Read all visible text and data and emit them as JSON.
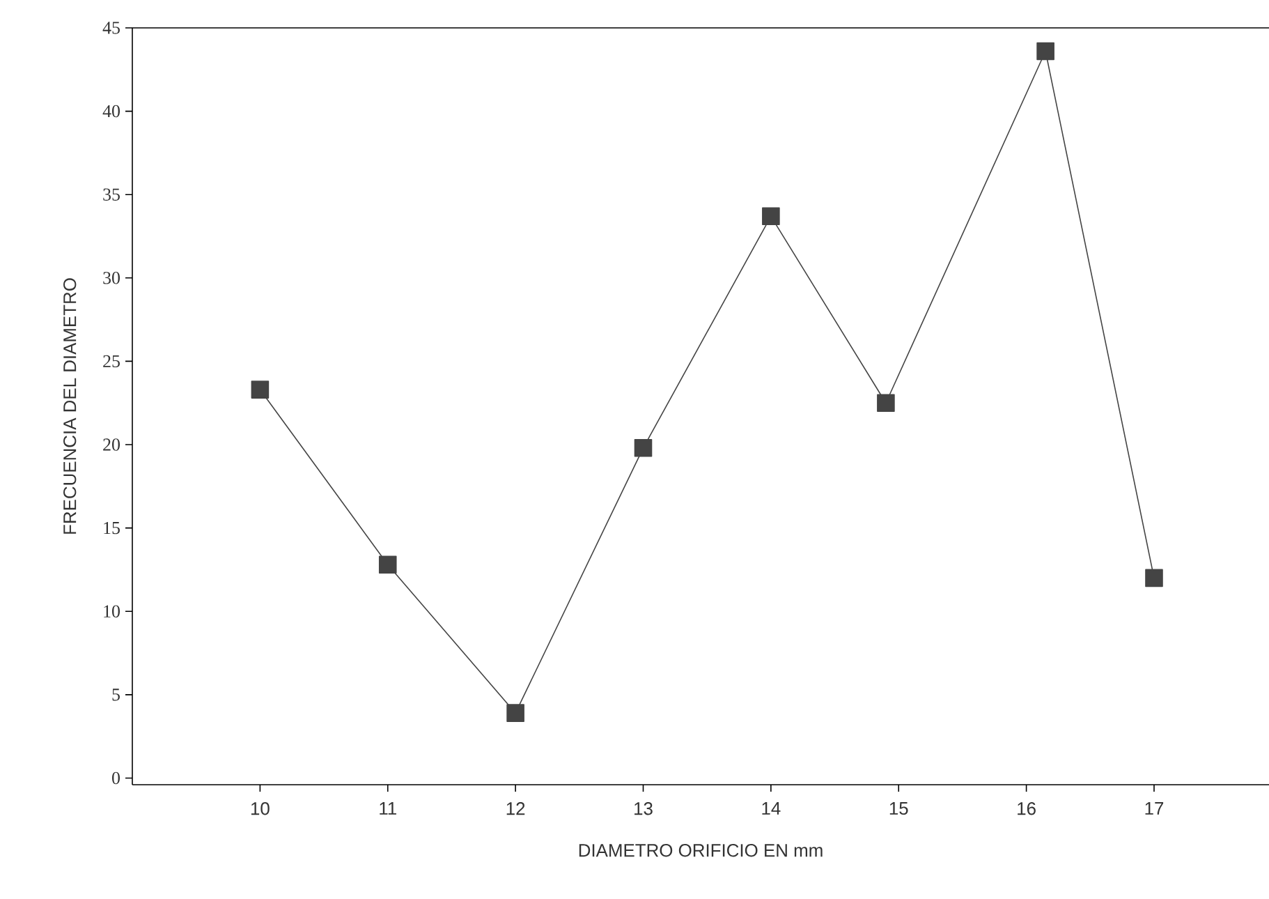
{
  "chart_data": {
    "type": "line",
    "xlabel": "DIAMETRO ORIFICIO EN mm",
    "ylabel": "FRECUENCIA DEL DIAMETRO",
    "x": [
      10,
      11,
      12,
      13,
      14,
      14.9,
      16.15,
      17
    ],
    "series": [
      {
        "color": "#444444",
        "values": [
          23.3,
          12.8,
          3.9,
          19.8,
          33.7,
          22.5,
          43.6,
          12
        ]
      }
    ],
    "xlim": [
      9,
      17.9
    ],
    "xticks": [
      10,
      11,
      12,
      13,
      14,
      15,
      16,
      17
    ],
    "ylim": [
      -0.4,
      45
    ],
    "yticks": [
      0,
      5,
      10,
      15,
      20,
      25,
      30,
      35,
      40,
      45
    ],
    "marker": "square",
    "line_style": "solid"
  }
}
